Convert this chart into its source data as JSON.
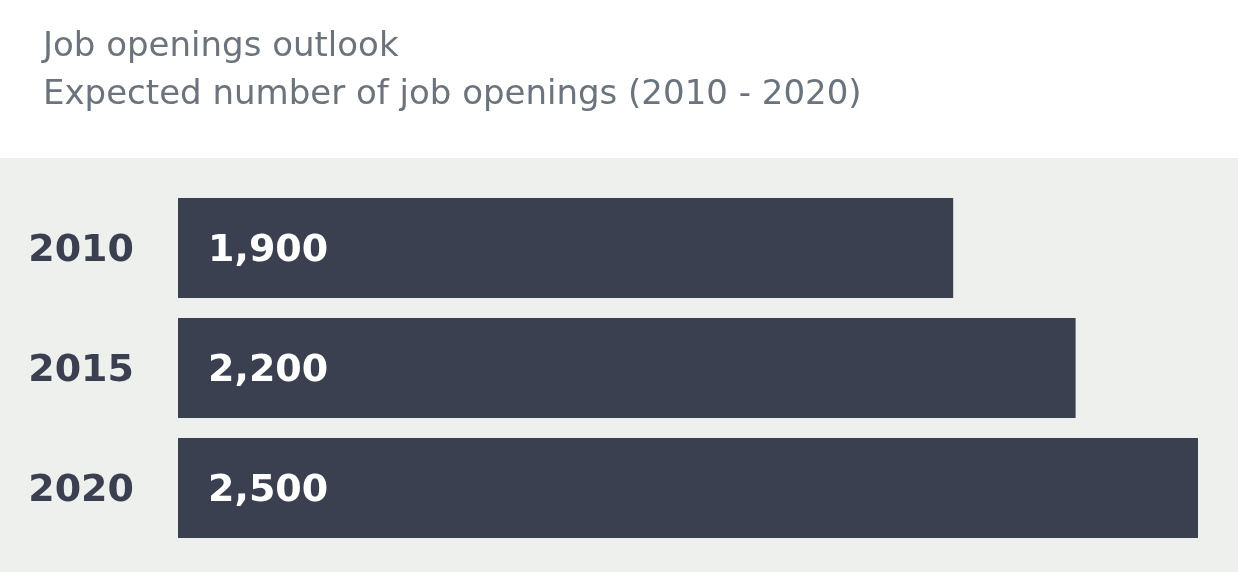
{
  "chart_data": {
    "type": "bar",
    "orientation": "horizontal",
    "title": "Job openings outlook",
    "subtitle": "Expected number of job openings (2010 - 2020)",
    "categories": [
      "2010",
      "2015",
      "2020"
    ],
    "values": [
      1900,
      2200,
      2500
    ],
    "color": "#3a4050",
    "value_labels": [
      "1,900",
      "2,200",
      "2,500"
    ],
    "xlim": [
      0,
      2500
    ],
    "tick_labels": "y"
  }
}
